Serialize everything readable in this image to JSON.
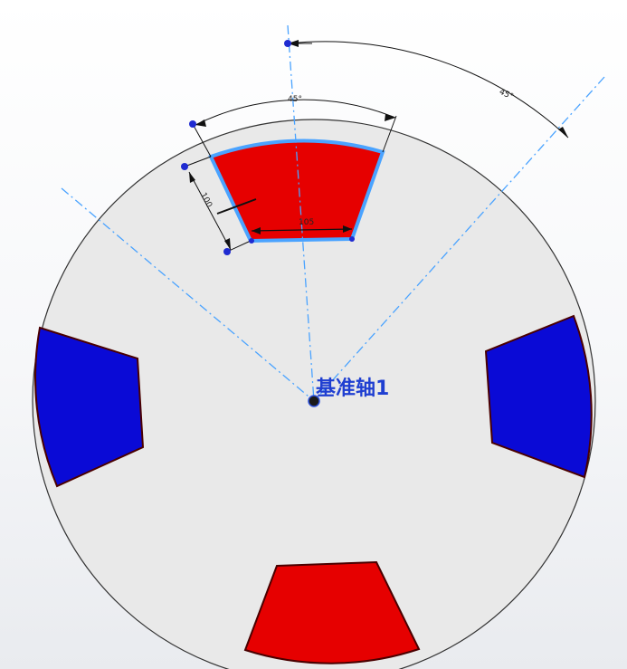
{
  "axis": {
    "label": "基准轴1"
  },
  "dimensions": {
    "angle_top": "45°",
    "angle_right": "45°",
    "width": "105",
    "height": "100"
  },
  "colors": {
    "background": "#f3f4f6",
    "disk": "#e9e9e9",
    "red_segment": "#e60000",
    "blue_segment": "#0a0ad6",
    "selection": "#4aa3ff",
    "centerline": "#4aa3ff",
    "dimension": "#111111",
    "point": "#1f2bd1"
  },
  "icons": [
    "sketch-point-icon",
    "axis-origin-icon"
  ]
}
